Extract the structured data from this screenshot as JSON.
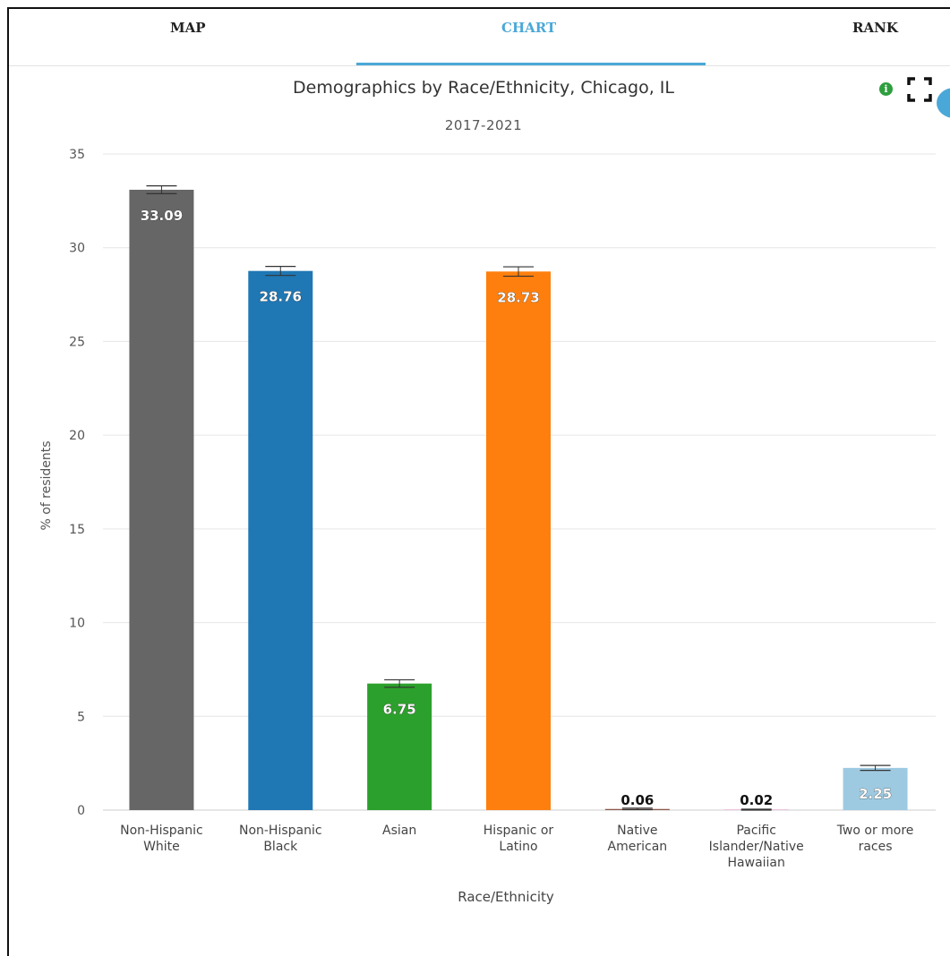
{
  "tabs": [
    {
      "label": "MAP",
      "active": false
    },
    {
      "label": "CHART",
      "active": true
    },
    {
      "label": "RANK",
      "active": false
    }
  ],
  "icons": {
    "info": "info-icon",
    "fullscreen": "fullscreen-icon",
    "info_symbol": "i"
  },
  "chart_data": {
    "type": "bar",
    "title": "Demographics by Race/Ethnicity, Chicago, IL",
    "subtitle": "2017-2021",
    "xlabel": "Race/Ethnicity",
    "ylabel": "% of residents",
    "ylim": [
      0,
      35
    ],
    "yticks": [
      0,
      5,
      10,
      15,
      20,
      25,
      30,
      35
    ],
    "grid": true,
    "error_bars": true,
    "categories": [
      [
        "Non-Hispanic",
        "White"
      ],
      [
        "Non-Hispanic",
        "Black"
      ],
      [
        "Asian"
      ],
      [
        "Hispanic or",
        "Latino"
      ],
      [
        "Native",
        "American"
      ],
      [
        "Pacific",
        "Islander/Native",
        "Hawaiian"
      ],
      [
        "Two or more",
        "races"
      ]
    ],
    "values": [
      33.09,
      28.76,
      6.75,
      28.73,
      0.06,
      0.02,
      2.25
    ],
    "data_labels": [
      "33.09",
      "28.76",
      "6.75",
      "28.73",
      "0.06",
      "0.02",
      "2.25"
    ],
    "error_upper": [
      33.3,
      29.0,
      6.95,
      28.98,
      0.1,
      0.05,
      2.38
    ],
    "error_lower": [
      32.88,
      28.52,
      6.55,
      28.48,
      0.02,
      0.0,
      2.12
    ],
    "colors": [
      "#666666",
      "#1f77b4",
      "#2ca02c",
      "#ff7f0e",
      "#8c564b",
      "#e377c2",
      "#9ecae1"
    ]
  }
}
